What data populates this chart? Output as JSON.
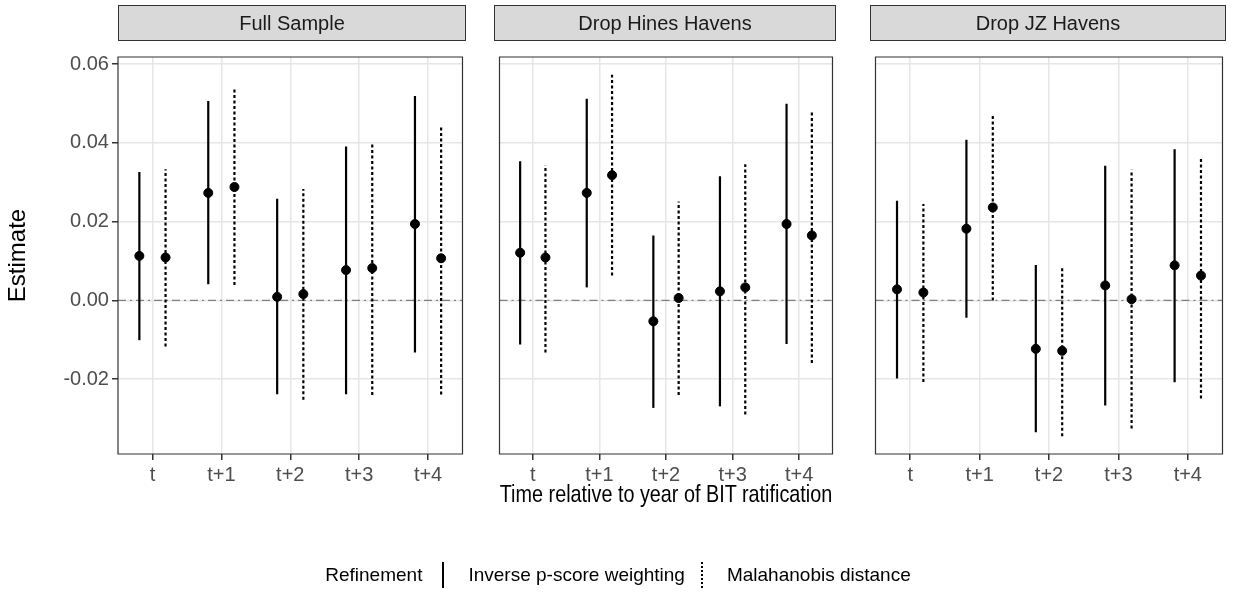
{
  "chart_data": [
    {
      "type": "scatter",
      "title": "Full Sample",
      "ylabel": "Estimate",
      "categories": [
        "t",
        "t+1",
        "t+2",
        "t+3",
        "t+4"
      ],
      "series": [
        {
          "name": "Inverse p-score weighting",
          "color": "#000000",
          "line_style": "solid",
          "values": [
            0.0113,
            0.0273,
            0.0009,
            0.0077,
            0.0194
          ],
          "errors": [
            [
              -0.0101,
              0.0326
            ],
            [
              0.0041,
              0.0506
            ],
            [
              -0.0238,
              0.0258
            ],
            [
              -0.0238,
              0.0391
            ],
            [
              -0.0132,
              0.0519
            ]
          ]
        },
        {
          "name": "Malahanobis distance",
          "color": "#000000",
          "line_style": "dotted",
          "values": [
            0.0109,
            0.0288,
            0.0016,
            0.0082,
            0.0107
          ],
          "errors": [
            [
              -0.0117,
              0.0333
            ],
            [
              0.0039,
              0.0537
            ],
            [
              -0.0252,
              0.0283
            ],
            [
              -0.024,
              0.0398
            ],
            [
              -0.0239,
              0.0445
            ]
          ]
        }
      ],
      "ylim": [
        -0.039,
        0.0618
      ],
      "yticks": [
        -0.02,
        {
          "value": 0,
          "label": "0.00"
        },
        0.02,
        0.04,
        0.06
      ],
      "grid": true,
      "marker": "circle",
      "legend": "bottom",
      "legend_title": "Refinement",
      "ref_lines": [
        {
          "axis": "y",
          "value": 0,
          "color": "#808080",
          "line_style": "dashed"
        }
      ]
    },
    {
      "type": "scatter",
      "title": "Drop Hines Havens",
      "xlabel": "Time relative to year of BIT ratification",
      "categories": [
        "t",
        "t+1",
        "t+2",
        "t+3",
        "t+4"
      ],
      "series": [
        {
          "color": "#000000",
          "line_style": "solid",
          "values": [
            0.0121,
            0.0273,
            -0.0053,
            0.0023,
            0.0194
          ],
          "errors": [
            [
              -0.0112,
              0.0353
            ],
            [
              0.0033,
              0.0512
            ],
            [
              -0.0273,
              0.0165
            ],
            [
              -0.0269,
              0.0315
            ],
            [
              -0.0111,
              0.0499
            ]
          ]
        },
        {
          "color": "#000000",
          "line_style": "dotted",
          "values": [
            0.0109,
            0.0318,
            0.0006,
            0.0033,
            0.0165
          ],
          "errors": [
            [
              -0.0132,
              0.0343
            ],
            [
              0.0063,
              0.0573
            ],
            [
              -0.024,
              0.0251
            ],
            [
              -0.029,
              0.0346
            ],
            [
              -0.0159,
              0.0478
            ]
          ]
        }
      ],
      "ylim": [
        -0.039,
        0.0618
      ],
      "yticks": [
        -0.02,
        0,
        0.02,
        0.04,
        0.06
      ],
      "tick_labels": "x",
      "grid": true,
      "marker": "circle",
      "ref_lines": [
        {
          "axis": "y",
          "value": 0,
          "color": "#808080",
          "line_style": "dashed"
        }
      ]
    },
    {
      "type": "scatter",
      "title": "Drop JZ Havens",
      "categories": [
        "t",
        "t+1",
        "t+2",
        "t+3",
        "t+4"
      ],
      "series": [
        {
          "color": "#000000",
          "line_style": "solid",
          "values": [
            0.0028,
            0.0182,
            -0.0123,
            0.0038,
            0.0089
          ],
          "errors": [
            [
              -0.0198,
              0.0253
            ],
            [
              -0.0044,
              0.0408
            ],
            [
              -0.0335,
              0.009
            ],
            [
              -0.0267,
              0.0342
            ],
            [
              -0.0208,
              0.0384
            ]
          ]
        },
        {
          "color": "#000000",
          "line_style": "dotted",
          "values": [
            0.002,
            0.0236,
            -0.0128,
            0.0003,
            0.0063
          ],
          "errors": [
            [
              -0.0207,
              0.0245
            ],
            [
              0,
              0.0469
            ],
            [
              -0.0345,
              0.0083
            ],
            [
              -0.0325,
              0.0332
            ],
            [
              -0.0249,
              0.0363
            ]
          ]
        }
      ],
      "ylim": [
        -0.039,
        0.0618
      ],
      "yticks": [
        -0.02,
        0,
        0.02,
        0.04,
        0.06
      ],
      "tick_labels": "x",
      "grid": true,
      "marker": "circle",
      "ref_lines": [
        {
          "axis": "y",
          "value": 0,
          "color": "#808080",
          "line_style": "dashed"
        }
      ]
    }
  ]
}
